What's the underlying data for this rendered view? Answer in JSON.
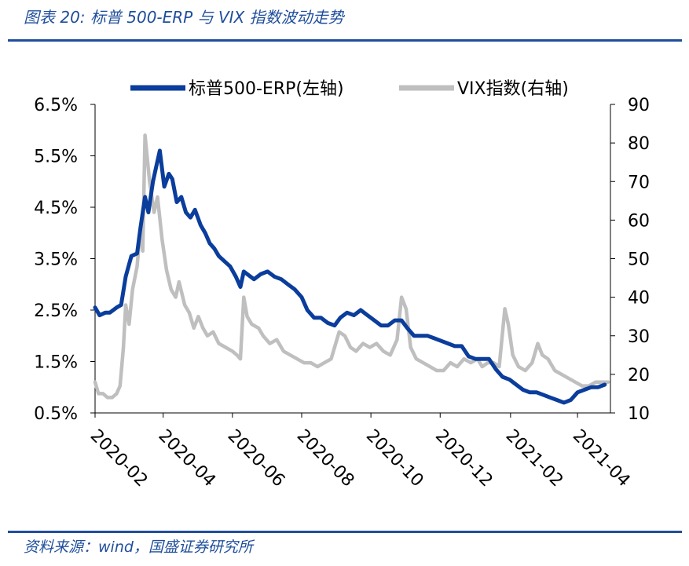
{
  "figure": {
    "title": "图表 20:  标普 500-ERP 与 VIX 指数波动走势",
    "source": "资料来源：wind，国盛证券研究所"
  },
  "chart_data": {
    "type": "line",
    "title": "",
    "xlabel": "",
    "ylabel_left": "",
    "ylabel_right": "",
    "x_ticks": [
      "2020-02",
      "2020-04",
      "2020-06",
      "2020-08",
      "2020-10",
      "2020-12",
      "2021-02",
      "2021-04"
    ],
    "y_left_ticks": [
      "6.5%",
      "5.5%",
      "4.5%",
      "3.5%",
      "2.5%",
      "1.5%",
      "0.5%"
    ],
    "y_right_ticks": [
      "90",
      "80",
      "70",
      "60",
      "50",
      "40",
      "30",
      "20",
      "10"
    ],
    "ylim_left": [
      0.5,
      6.5
    ],
    "ylim_right": [
      10,
      90
    ],
    "xlim": [
      "2020-02-01",
      "2021-04-30"
    ],
    "legend_position": "top",
    "grid": false,
    "colors": {
      "erp": "#0a3d9c",
      "vix": "#bfbfbf",
      "axis": "#000000"
    },
    "series": [
      {
        "name": "标普500-ERP(左轴)",
        "axis": "left",
        "color": "#0a3d9c",
        "points": [
          [
            "2020-02-01",
            2.55
          ],
          [
            "2020-02-05",
            2.4
          ],
          [
            "2020-02-10",
            2.45
          ],
          [
            "2020-02-14",
            2.45
          ],
          [
            "2020-02-20",
            2.55
          ],
          [
            "2020-02-24",
            2.6
          ],
          [
            "2020-02-28",
            3.15
          ],
          [
            "2020-03-04",
            3.55
          ],
          [
            "2020-03-09",
            3.6
          ],
          [
            "2020-03-12",
            4.1
          ],
          [
            "2020-03-16",
            4.7
          ],
          [
            "2020-03-19",
            4.4
          ],
          [
            "2020-03-23",
            5.0
          ],
          [
            "2020-03-26",
            5.3
          ],
          [
            "2020-03-29",
            5.6
          ],
          [
            "2020-04-02",
            4.9
          ],
          [
            "2020-04-06",
            5.15
          ],
          [
            "2020-04-09",
            5.05
          ],
          [
            "2020-04-13",
            4.6
          ],
          [
            "2020-04-17",
            4.7
          ],
          [
            "2020-04-21",
            4.4
          ],
          [
            "2020-04-25",
            4.3
          ],
          [
            "2020-04-29",
            4.45
          ],
          [
            "2020-05-04",
            4.15
          ],
          [
            "2020-05-08",
            4.0
          ],
          [
            "2020-05-12",
            3.8
          ],
          [
            "2020-05-16",
            3.7
          ],
          [
            "2020-05-20",
            3.55
          ],
          [
            "2020-05-25",
            3.45
          ],
          [
            "2020-05-30",
            3.35
          ],
          [
            "2020-06-04",
            3.15
          ],
          [
            "2020-06-08",
            2.95
          ],
          [
            "2020-06-11",
            3.25
          ],
          [
            "2020-06-14",
            3.2
          ],
          [
            "2020-06-20",
            3.1
          ],
          [
            "2020-06-26",
            3.2
          ],
          [
            "2020-07-02",
            3.25
          ],
          [
            "2020-07-08",
            3.15
          ],
          [
            "2020-07-14",
            3.1
          ],
          [
            "2020-07-20",
            3.0
          ],
          [
            "2020-07-26",
            2.9
          ],
          [
            "2020-08-01",
            2.75
          ],
          [
            "2020-08-06",
            2.5
          ],
          [
            "2020-08-12",
            2.35
          ],
          [
            "2020-08-18",
            2.35
          ],
          [
            "2020-08-24",
            2.25
          ],
          [
            "2020-08-30",
            2.2
          ],
          [
            "2020-09-04",
            2.35
          ],
          [
            "2020-09-10",
            2.45
          ],
          [
            "2020-09-16",
            2.4
          ],
          [
            "2020-09-22",
            2.5
          ],
          [
            "2020-09-28",
            2.4
          ],
          [
            "2020-10-04",
            2.3
          ],
          [
            "2020-10-10",
            2.2
          ],
          [
            "2020-10-16",
            2.2
          ],
          [
            "2020-10-22",
            2.3
          ],
          [
            "2020-10-28",
            2.3
          ],
          [
            "2020-11-02",
            2.15
          ],
          [
            "2020-11-08",
            2.0
          ],
          [
            "2020-11-14",
            2.0
          ],
          [
            "2020-11-20",
            2.0
          ],
          [
            "2020-11-26",
            1.95
          ],
          [
            "2020-12-02",
            1.9
          ],
          [
            "2020-12-08",
            1.85
          ],
          [
            "2020-12-14",
            1.8
          ],
          [
            "2020-12-20",
            1.8
          ],
          [
            "2020-12-26",
            1.6
          ],
          [
            "2021-01-01",
            1.55
          ],
          [
            "2021-01-07",
            1.55
          ],
          [
            "2021-01-13",
            1.55
          ],
          [
            "2021-01-19",
            1.35
          ],
          [
            "2021-01-25",
            1.2
          ],
          [
            "2021-01-31",
            1.15
          ],
          [
            "2021-02-06",
            1.05
          ],
          [
            "2021-02-12",
            0.95
          ],
          [
            "2021-02-18",
            0.9
          ],
          [
            "2021-02-24",
            0.9
          ],
          [
            "2021-03-02",
            0.85
          ],
          [
            "2021-03-08",
            0.8
          ],
          [
            "2021-03-14",
            0.75
          ],
          [
            "2021-03-20",
            0.7
          ],
          [
            "2021-03-26",
            0.75
          ],
          [
            "2021-04-01",
            0.9
          ],
          [
            "2021-04-07",
            0.95
          ],
          [
            "2021-04-13",
            1.0
          ],
          [
            "2021-04-19",
            1.0
          ],
          [
            "2021-04-25",
            1.05
          ]
        ]
      },
      {
        "name": "VIX指数(右轴)",
        "axis": "right",
        "color": "#bfbfbf",
        "points": [
          [
            "2020-02-01",
            18
          ],
          [
            "2020-02-04",
            15
          ],
          [
            "2020-02-08",
            15
          ],
          [
            "2020-02-12",
            14
          ],
          [
            "2020-02-16",
            14
          ],
          [
            "2020-02-20",
            15
          ],
          [
            "2020-02-23",
            17
          ],
          [
            "2020-02-26",
            27
          ],
          [
            "2020-02-28",
            38
          ],
          [
            "2020-03-02",
            33
          ],
          [
            "2020-03-05",
            42
          ],
          [
            "2020-03-09",
            48
          ],
          [
            "2020-03-12",
            58
          ],
          [
            "2020-03-14",
            52
          ],
          [
            "2020-03-16",
            82
          ],
          [
            "2020-03-18",
            76
          ],
          [
            "2020-03-20",
            70
          ],
          [
            "2020-03-24",
            62
          ],
          [
            "2020-03-27",
            66
          ],
          [
            "2020-03-31",
            55
          ],
          [
            "2020-04-04",
            47
          ],
          [
            "2020-04-08",
            42
          ],
          [
            "2020-04-12",
            40
          ],
          [
            "2020-04-15",
            44
          ],
          [
            "2020-04-20",
            38
          ],
          [
            "2020-04-24",
            36
          ],
          [
            "2020-04-28",
            32
          ],
          [
            "2020-05-02",
            35
          ],
          [
            "2020-05-06",
            32
          ],
          [
            "2020-05-10",
            30
          ],
          [
            "2020-05-15",
            31
          ],
          [
            "2020-05-20",
            28
          ],
          [
            "2020-05-26",
            27
          ],
          [
            "2020-06-01",
            26
          ],
          [
            "2020-06-05",
            25
          ],
          [
            "2020-06-08",
            24
          ],
          [
            "2020-06-11",
            40
          ],
          [
            "2020-06-14",
            35
          ],
          [
            "2020-06-18",
            33
          ],
          [
            "2020-06-24",
            32
          ],
          [
            "2020-06-28",
            30
          ],
          [
            "2020-07-04",
            28
          ],
          [
            "2020-07-10",
            29
          ],
          [
            "2020-07-16",
            26
          ],
          [
            "2020-07-22",
            25
          ],
          [
            "2020-07-28",
            24
          ],
          [
            "2020-08-03",
            23
          ],
          [
            "2020-08-09",
            23
          ],
          [
            "2020-08-15",
            22
          ],
          [
            "2020-08-21",
            23
          ],
          [
            "2020-08-27",
            24
          ],
          [
            "2020-09-03",
            31
          ],
          [
            "2020-09-08",
            30
          ],
          [
            "2020-09-13",
            27
          ],
          [
            "2020-09-18",
            26
          ],
          [
            "2020-09-24",
            28
          ],
          [
            "2020-09-30",
            27
          ],
          [
            "2020-10-06",
            28
          ],
          [
            "2020-10-12",
            26
          ],
          [
            "2020-10-18",
            25
          ],
          [
            "2020-10-24",
            29
          ],
          [
            "2020-10-28",
            40
          ],
          [
            "2020-11-01",
            37
          ],
          [
            "2020-11-05",
            27
          ],
          [
            "2020-11-10",
            24
          ],
          [
            "2020-11-16",
            23
          ],
          [
            "2020-11-22",
            22
          ],
          [
            "2020-11-28",
            21
          ],
          [
            "2020-12-04",
            21
          ],
          [
            "2020-12-10",
            23
          ],
          [
            "2020-12-16",
            22
          ],
          [
            "2020-12-22",
            24
          ],
          [
            "2020-12-28",
            23
          ],
          [
            "2021-01-03",
            24
          ],
          [
            "2021-01-07",
            22
          ],
          [
            "2021-01-12",
            23
          ],
          [
            "2021-01-17",
            23
          ],
          [
            "2021-01-22",
            22
          ],
          [
            "2021-01-27",
            37
          ],
          [
            "2021-01-30",
            33
          ],
          [
            "2021-02-03",
            25
          ],
          [
            "2021-02-08",
            22
          ],
          [
            "2021-02-14",
            21
          ],
          [
            "2021-02-20",
            23
          ],
          [
            "2021-02-25",
            28
          ],
          [
            "2021-03-01",
            25
          ],
          [
            "2021-03-06",
            24
          ],
          [
            "2021-03-12",
            21
          ],
          [
            "2021-03-18",
            20
          ],
          [
            "2021-03-24",
            19
          ],
          [
            "2021-03-30",
            18
          ],
          [
            "2021-04-05",
            17
          ],
          [
            "2021-04-11",
            17
          ],
          [
            "2021-04-17",
            18
          ],
          [
            "2021-04-23",
            18
          ],
          [
            "2021-04-28",
            18
          ]
        ]
      }
    ]
  }
}
